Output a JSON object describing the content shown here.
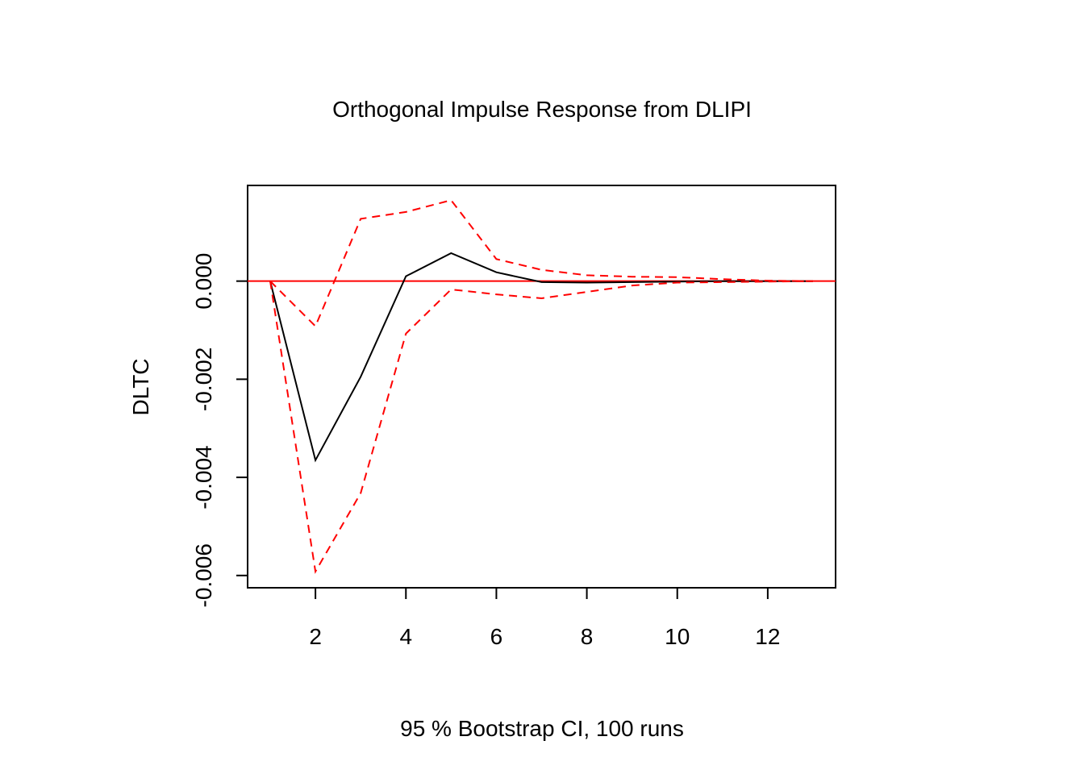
{
  "chart_data": {
    "type": "line",
    "title": "Orthogonal Impulse Response from DLIPI",
    "xlabel": "95 % Bootstrap CI,  100 runs",
    "ylabel": "DLTC",
    "xlim": [
      0.5,
      13.5
    ],
    "ylim": [
      -0.00625,
      0.00195
    ],
    "x_ticks": [
      2,
      4,
      6,
      8,
      10,
      12
    ],
    "x_tick_labels": [
      "2",
      "4",
      "6",
      "8",
      "10",
      "12"
    ],
    "y_ticks": [
      -0.006,
      -0.004,
      -0.002,
      0.0
    ],
    "y_tick_labels": [
      "-0.006",
      "-0.004",
      "-0.002",
      "0.000"
    ],
    "x": [
      1,
      2,
      3,
      4,
      5,
      6,
      7,
      8,
      9,
      10,
      11,
      12,
      13
    ],
    "series": [
      {
        "role": "response",
        "color": "#000000",
        "dash": "solid",
        "values": [
          0.0,
          -0.00365,
          -0.00195,
          0.0001,
          0.00057,
          0.00018,
          -2e-05,
          -3e-05,
          -2e-05,
          -1e-05,
          0.0,
          0.0,
          0.0
        ]
      },
      {
        "role": "upper",
        "color": "#ff0000",
        "dash": "dashed",
        "values": [
          0.0,
          -0.00092,
          0.00127,
          0.00141,
          0.00165,
          0.00045,
          0.00023,
          0.00012,
          9e-05,
          8e-05,
          4e-05,
          1e-05,
          0.0
        ]
      },
      {
        "role": "lower",
        "color": "#ff0000",
        "dash": "dashed",
        "values": [
          0.0,
          -0.00592,
          -0.00432,
          -0.00107,
          -0.00017,
          -0.00027,
          -0.00035,
          -0.00022,
          -9e-05,
          -3e-05,
          -2e-05,
          -1e-05,
          0.0
        ]
      }
    ],
    "reference_line": {
      "y": 0.0,
      "color": "#ff0000"
    },
    "grid": false,
    "legend": "none"
  }
}
